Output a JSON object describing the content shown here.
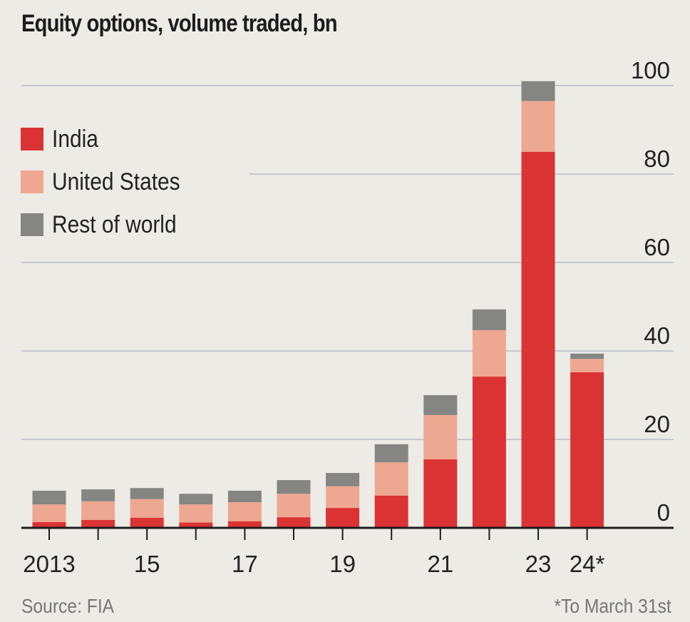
{
  "chart_data": {
    "type": "bar",
    "stacked": true,
    "title": "Equity options, volume traded, bn",
    "xlabel": "",
    "ylabel": "",
    "ylim": [
      0,
      100
    ],
    "yticks": [
      0,
      20,
      40,
      60,
      80,
      100
    ],
    "grid": true,
    "legend_position": "top-left",
    "categories": [
      "2013",
      "2014",
      "2015",
      "2016",
      "2017",
      "2018",
      "2019",
      "2020",
      "2021",
      "2022",
      "2023",
      "2024*"
    ],
    "tick_labels": [
      "2013",
      "",
      "15",
      "",
      "17",
      "",
      "19",
      "",
      "21",
      "",
      "23",
      "24*"
    ],
    "series": [
      {
        "name": "India",
        "color": "#db3333",
        "values": [
          1.3,
          1.8,
          2.3,
          1.2,
          1.5,
          2.4,
          4.5,
          7.3,
          15.5,
          34.2,
          85.0,
          35.2
        ]
      },
      {
        "name": "United States",
        "color": "#eea791",
        "values": [
          4.0,
          4.2,
          4.2,
          4.1,
          4.3,
          5.3,
          4.9,
          7.5,
          10.0,
          10.5,
          11.5,
          3.0
        ]
      },
      {
        "name": "Rest of world",
        "color": "#858582",
        "values": [
          3.1,
          2.7,
          2.5,
          2.4,
          2.6,
          3.1,
          3.0,
          4.1,
          4.5,
          4.7,
          4.5,
          1.2
        ]
      }
    ],
    "source": "Source: FIA",
    "footnote": "*To March 31st"
  },
  "colors": {
    "background": "#ecebe5",
    "gridline": "#c5c7cf",
    "axis": "#1c1c1c"
  }
}
